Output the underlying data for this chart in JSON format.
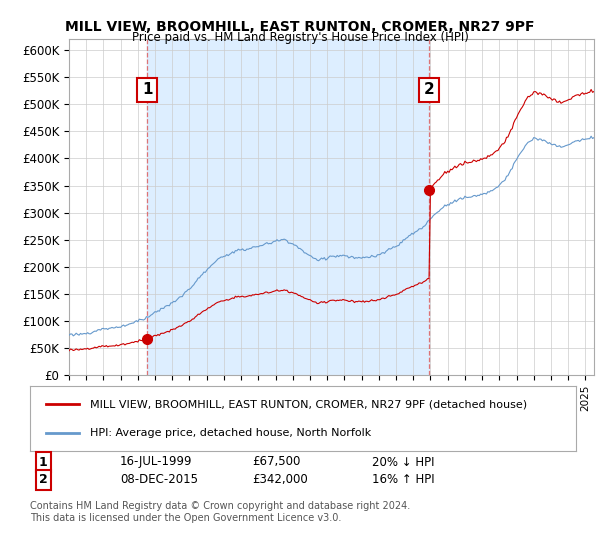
{
  "title": "MILL VIEW, BROOMHILL, EAST RUNTON, CROMER, NR27 9PF",
  "subtitle": "Price paid vs. HM Land Registry's House Price Index (HPI)",
  "ylim": [
    0,
    620000
  ],
  "yticks": [
    0,
    50000,
    100000,
    150000,
    200000,
    250000,
    300000,
    350000,
    400000,
    450000,
    500000,
    550000,
    600000
  ],
  "ytick_labels": [
    "£0",
    "£50K",
    "£100K",
    "£150K",
    "£200K",
    "£250K",
    "£300K",
    "£350K",
    "£400K",
    "£450K",
    "£500K",
    "£550K",
    "£600K"
  ],
  "sale1_price": 67500,
  "sale1_label": "1",
  "sale1_pct": "20% ↓ HPI",
  "sale1_date_str": "16-JUL-1999",
  "sale1_year": 1999.542,
  "sale2_price": 342000,
  "sale2_label": "2",
  "sale2_pct": "16% ↑ HPI",
  "sale2_date_str": "08-DEC-2015",
  "sale2_year": 2015.936,
  "property_color": "#cc0000",
  "hpi_color": "#6699cc",
  "shade_color": "#ddeeff",
  "vline_color": "#dd6666",
  "bg_color": "#ffffff",
  "grid_color": "#cccccc",
  "legend_property": "MILL VIEW, BROOMHILL, EAST RUNTON, CROMER, NR27 9PF (detached house)",
  "legend_hpi": "HPI: Average price, detached house, North Norfolk",
  "footnote": "Contains HM Land Registry data © Crown copyright and database right 2024.\nThis data is licensed under the Open Government Licence v3.0.",
  "xlim_start": 1995.0,
  "xlim_end": 2025.5
}
